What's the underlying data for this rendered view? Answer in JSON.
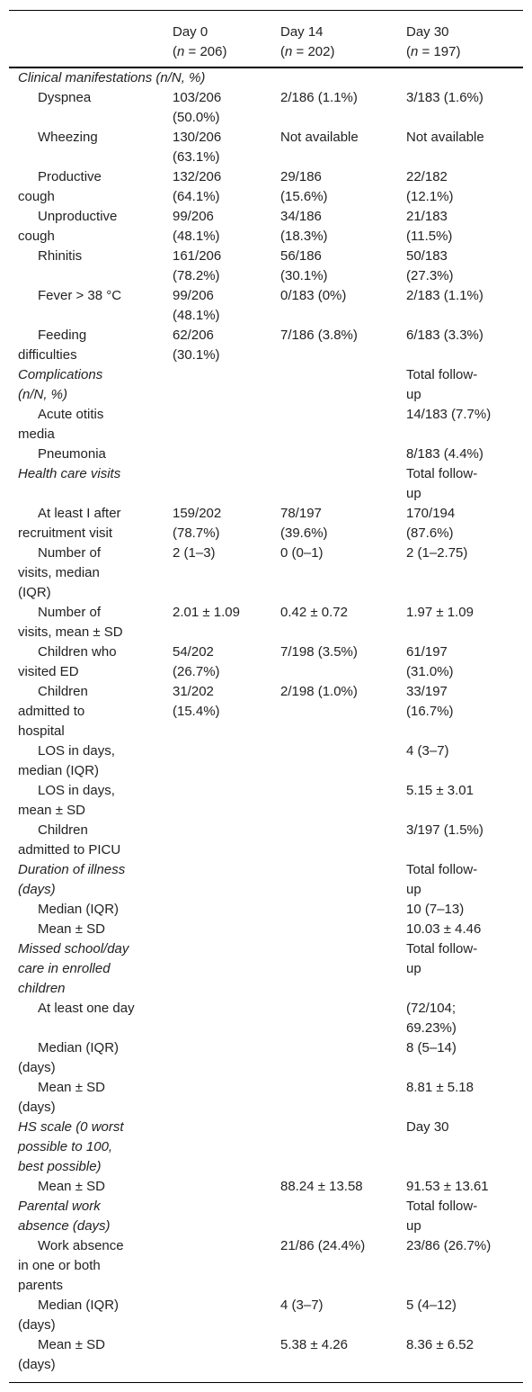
{
  "table": {
    "header": [
      {
        "day": "Day 0",
        "open": "(",
        "n": "n",
        "close": " = 206)"
      },
      {
        "day": "Day 14",
        "open": "(",
        "n": "n",
        "close": " = 202)"
      },
      {
        "day": "Day 30",
        "open": "(",
        "n": "n",
        "close": " = 197)"
      }
    ],
    "rows": [
      {
        "label": "Clinical manifestations (n/N, %)",
        "italic": true
      },
      {
        "label": "Dyspnea",
        "d0": "103/206 (50.0%)",
        "d14": "2/186 (1.1%)",
        "d30": "3/183 (1.6%)"
      },
      {
        "label": "Wheezing",
        "d0": "130/206 (63.1%)",
        "d14": "Not available",
        "d30": "Not available"
      },
      {
        "label": "Productive cough",
        "d0": "132/206 (64.1%)",
        "d14": "29/186 (15.6%)",
        "d30": "22/182 (12.1%)"
      },
      {
        "label": "Unproductive cough",
        "d0": "99/206 (48.1%)",
        "d14": "34/186 (18.3%)",
        "d30": "21/183 (11.5%)"
      },
      {
        "label": "Rhinitis",
        "d0": "161/206 (78.2%)",
        "d14": "56/186 (30.1%)",
        "d30": "50/183 (27.3%)"
      },
      {
        "label": "Fever > 38 °C",
        "d0": "99/206 (48.1%)",
        "d14": "0/183 (0%)",
        "d30": "2/183 (1.1%)"
      },
      {
        "label": "Feeding difficulties",
        "d0": "62/206 (30.1%)",
        "d14": "7/186 (3.8%)",
        "d30": "6/183 (3.3%)"
      },
      {
        "label": "Complications (n/N, %)",
        "italic": true,
        "d30": "Total follow-up"
      },
      {
        "label": "Acute otitis media",
        "d30": "14/183 (7.7%)"
      },
      {
        "label": "Pneumonia",
        "d30": "8/183 (4.4%)"
      },
      {
        "label": "Health care visits",
        "italic": true,
        "d30": "Total follow-up"
      },
      {
        "label": "At least I after recruitment visit",
        "d0": "159/202 (78.7%)",
        "d14": "78/197 (39.6%)",
        "d30": "170/194 (87.6%)"
      },
      {
        "label": "Number of visits, median (IQR)",
        "d0": "2 (1–3)",
        "d14": "0 (0–1)",
        "d30": "2 (1–2.75)"
      },
      {
        "label": "Number of visits, mean ± SD",
        "d0": "2.01 ± 1.09",
        "d14": "0.42 ± 0.72",
        "d30": "1.97 ± 1.09"
      },
      {
        "label": "Children who visited ED",
        "d0": "54/202 (26.7%)",
        "d14": "7/198 (3.5%)",
        "d30": "61/197 (31.0%)"
      },
      {
        "label": "Children admitted to hospital",
        "d0": "31/202 (15.4%)",
        "d14": "2/198 (1.0%)",
        "d30": "33/197 (16.7%)"
      },
      {
        "label": "LOS in days, median (IQR)",
        "d30": "4 (3–7)"
      },
      {
        "label": "LOS in days, mean ± SD",
        "d30": "5.15 ± 3.01"
      },
      {
        "label": "Children admitted to PICU",
        "d30": "3/197 (1.5%)"
      },
      {
        "label": "Duration of illness (days)",
        "italic": true,
        "d30": "Total follow-up"
      },
      {
        "label": "Median (IQR)",
        "d30": "10 (7–13)"
      },
      {
        "label": "Mean ± SD",
        "d30": "10.03 ± 4.46"
      },
      {
        "label": "Missed school/day care in enrolled children",
        "italic": true,
        "d30": "Total follow-up"
      },
      {
        "label": "At least one day",
        "d30": "(72/104; 69.23%)"
      },
      {
        "label": "Median (IQR) (days)",
        "d30": "8 (5–14)"
      },
      {
        "label": "Mean ± SD (days)",
        "d30": "8.81 ± 5.18"
      },
      {
        "label": "HS scale (0 worst possible to 100, best possible)",
        "italic": true,
        "d30": "Day 30"
      },
      {
        "label": "Mean ± SD",
        "d14": "88.24 ± 13.58",
        "d30": "91.53 ± 13.61"
      },
      {
        "label": "Parental work absence (days)",
        "italic": true,
        "d30": "Total follow-up"
      },
      {
        "label": "Work absence in one or both parents",
        "d14": "21/86 (24.4%)",
        "d30": "23/86 (26.7%)"
      },
      {
        "label": "Median (IQR) (days)",
        "d14": "4 (3–7)",
        "d30": "5 (4–12)"
      },
      {
        "label": "Mean ± SD (days)",
        "d14": "5.38 ± 4.26",
        "d30": "8.36 ± 6.52"
      }
    ]
  }
}
